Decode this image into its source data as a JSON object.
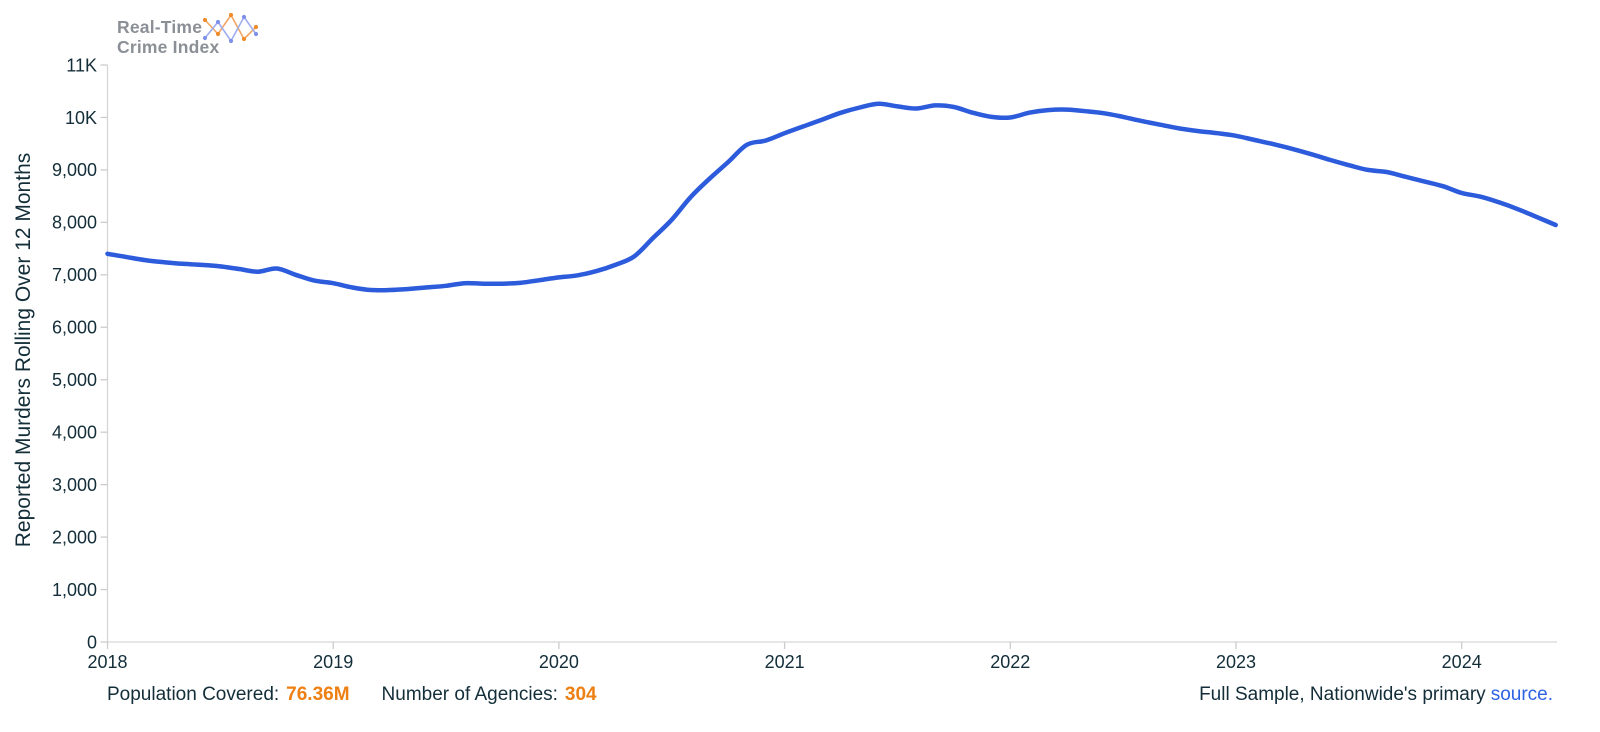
{
  "logo": {
    "line1": "Real-Time",
    "line2": "Crime Index"
  },
  "colors": {
    "line_blue": "#2c5bdc",
    "text_dark": "#132e39",
    "accent_orange": "#ee7f12",
    "link_blue": "#2d63e2",
    "logo_gray": "#8a9096",
    "axis_gray": "#d6d6d6",
    "tick_gray": "#cccccc",
    "logo_icon_orange": "#f2a662",
    "logo_icon_blue": "#9fadf0"
  },
  "chart_data": {
    "type": "line",
    "title": "",
    "xlabel": "",
    "ylabel": "Reported Murders Rolling Over 12 Months",
    "ylim": [
      0,
      11000
    ],
    "x_range": [
      "2018-01",
      "2024-06"
    ],
    "points_per_year": 12,
    "grid": "off",
    "legend": "none",
    "x_tick_labels": [
      "2018",
      "2019",
      "2020",
      "2021",
      "2022",
      "2023",
      "2024"
    ],
    "y_tick_values": [
      0,
      1000,
      2000,
      3000,
      4000,
      5000,
      6000,
      7000,
      8000,
      9000,
      10000,
      11000
    ],
    "y_tick_labels": [
      "0",
      "1,000",
      "2,000",
      "3,000",
      "4,000",
      "5,000",
      "6,000",
      "7,000",
      "8,000",
      "9,000",
      "10K",
      "11K"
    ],
    "series": [
      {
        "name": "Reported Murders Rolling Over 12 Months",
        "color": "#2c5bdc",
        "values": [
          7400,
          7340,
          7280,
          7240,
          7210,
          7190,
          7160,
          7110,
          7060,
          7120,
          7000,
          6890,
          6840,
          6760,
          6710,
          6710,
          6730,
          6760,
          6790,
          6840,
          6830,
          6830,
          6850,
          6900,
          6950,
          6990,
          7070,
          7190,
          7350,
          7700,
          8050,
          8480,
          8830,
          9150,
          9480,
          9560,
          9700,
          9830,
          9960,
          10090,
          10190,
          10260,
          10210,
          10170,
          10230,
          10200,
          10090,
          10010,
          10000,
          10090,
          10140,
          10150,
          10120,
          10080,
          10010,
          9930,
          9860,
          9790,
          9740,
          9700,
          9650,
          9570,
          9490,
          9400,
          9300,
          9190,
          9090,
          9000,
          8960,
          8870,
          8780,
          8690,
          8560,
          8490,
          8380,
          8250,
          8100,
          7950
        ]
      }
    ]
  },
  "footer": {
    "population_label": "Population Covered:",
    "population_value": "76.36M",
    "agencies_label": "Number of Agencies:",
    "agencies_value": "304",
    "sample_text": "Full Sample, Nationwide's primary",
    "source_link": "source."
  }
}
